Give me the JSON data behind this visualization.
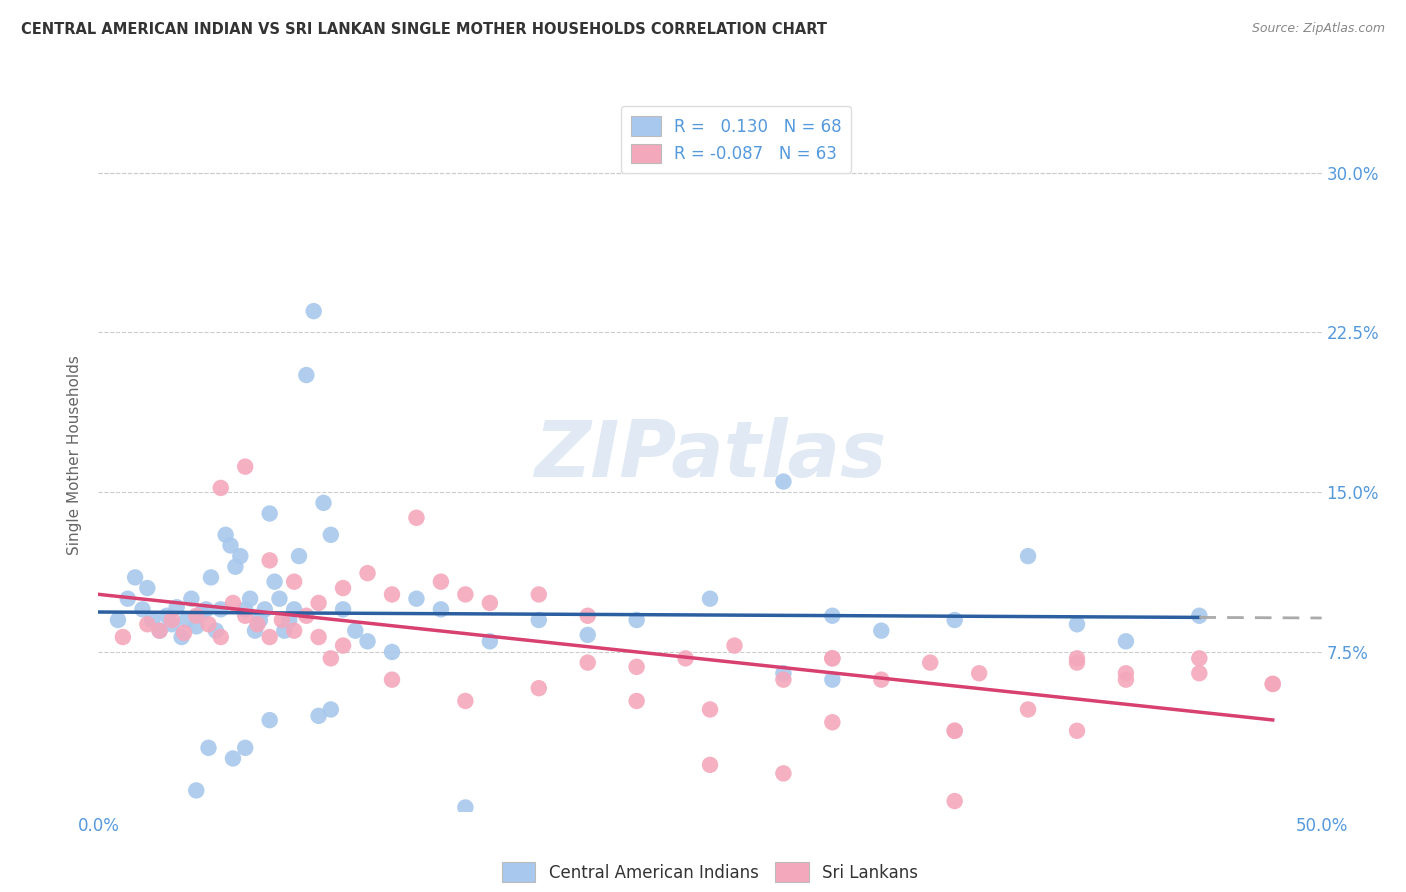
{
  "title": "CENTRAL AMERICAN INDIAN VS SRI LANKAN SINGLE MOTHER HOUSEHOLDS CORRELATION CHART",
  "source": "Source: ZipAtlas.com",
  "ylabel": "Single Mother Households",
  "xlim": [
    0.0,
    0.5
  ],
  "ylim": [
    -0.005,
    0.335
  ],
  "plot_ylim": [
    0.0,
    0.32
  ],
  "yticks": [
    0.075,
    0.15,
    0.225,
    0.3
  ],
  "ytick_labels": [
    "7.5%",
    "15.0%",
    "22.5%",
    "30.0%"
  ],
  "xticks": [
    0.0,
    0.1,
    0.2,
    0.3,
    0.4,
    0.5
  ],
  "xtick_labels": [
    "0.0%",
    "",
    "",
    "",
    "",
    "50.0%"
  ],
  "blue_color": "#A8C8ED",
  "pink_color": "#F4A8BC",
  "blue_line_color": "#2B5FA0",
  "pink_line_color": "#D84070",
  "dashed_color": "#AAAAAA",
  "grid_color": "#CCCCCC",
  "title_color": "#333333",
  "right_axis_color": "#5599DD",
  "legend_r_blue": "0.130",
  "legend_n_blue": "68",
  "legend_r_pink": "-0.087",
  "legend_n_pink": "63",
  "legend_label_blue": "Central American Indians",
  "legend_label_pink": "Sri Lankans",
  "watermark": "ZIPatlas",
  "blue_R": 0.13,
  "pink_R": -0.087,
  "blue_scatter_x": [
    0.008,
    0.012,
    0.015,
    0.018,
    0.02,
    0.022,
    0.025,
    0.028,
    0.03,
    0.032,
    0.034,
    0.036,
    0.038,
    0.04,
    0.042,
    0.044,
    0.046,
    0.048,
    0.05,
    0.052,
    0.054,
    0.056,
    0.058,
    0.06,
    0.062,
    0.064,
    0.066,
    0.068,
    0.07,
    0.072,
    0.074,
    0.076,
    0.078,
    0.08,
    0.082,
    0.085,
    0.088,
    0.092,
    0.095,
    0.1,
    0.105,
    0.11,
    0.12,
    0.13,
    0.14,
    0.16,
    0.18,
    0.2,
    0.22,
    0.25,
    0.28,
    0.3,
    0.32,
    0.35,
    0.38,
    0.4,
    0.42,
    0.45,
    0.28,
    0.3,
    0.09,
    0.095,
    0.04,
    0.06,
    0.045,
    0.055,
    0.07,
    0.15
  ],
  "blue_scatter_y": [
    0.09,
    0.1,
    0.11,
    0.095,
    0.105,
    0.09,
    0.085,
    0.092,
    0.088,
    0.096,
    0.082,
    0.09,
    0.1,
    0.087,
    0.093,
    0.095,
    0.11,
    0.085,
    0.095,
    0.13,
    0.125,
    0.115,
    0.12,
    0.095,
    0.1,
    0.085,
    0.09,
    0.095,
    0.14,
    0.108,
    0.1,
    0.085,
    0.09,
    0.095,
    0.12,
    0.205,
    0.235,
    0.145,
    0.13,
    0.095,
    0.085,
    0.08,
    0.075,
    0.1,
    0.095,
    0.08,
    0.09,
    0.083,
    0.09,
    0.1,
    0.155,
    0.092,
    0.085,
    0.09,
    0.12,
    0.088,
    0.08,
    0.092,
    0.065,
    0.062,
    0.045,
    0.048,
    0.01,
    0.03,
    0.03,
    0.025,
    0.043,
    0.002
  ],
  "pink_scatter_x": [
    0.01,
    0.02,
    0.025,
    0.03,
    0.035,
    0.04,
    0.045,
    0.05,
    0.055,
    0.06,
    0.065,
    0.07,
    0.075,
    0.08,
    0.085,
    0.09,
    0.095,
    0.1,
    0.11,
    0.12,
    0.13,
    0.14,
    0.15,
    0.16,
    0.18,
    0.2,
    0.22,
    0.24,
    0.26,
    0.28,
    0.3,
    0.32,
    0.34,
    0.36,
    0.38,
    0.4,
    0.42,
    0.45,
    0.48,
    0.05,
    0.06,
    0.07,
    0.08,
    0.09,
    0.1,
    0.12,
    0.15,
    0.18,
    0.22,
    0.25,
    0.3,
    0.35,
    0.42,
    0.48,
    0.2,
    0.25,
    0.3,
    0.35,
    0.4,
    0.45,
    0.28,
    0.35,
    0.4
  ],
  "pink_scatter_y": [
    0.082,
    0.088,
    0.085,
    0.09,
    0.084,
    0.092,
    0.088,
    0.082,
    0.098,
    0.092,
    0.088,
    0.082,
    0.09,
    0.085,
    0.092,
    0.082,
    0.072,
    0.078,
    0.112,
    0.102,
    0.138,
    0.108,
    0.102,
    0.098,
    0.102,
    0.092,
    0.068,
    0.072,
    0.078,
    0.062,
    0.072,
    0.062,
    0.07,
    0.065,
    0.048,
    0.07,
    0.065,
    0.072,
    0.06,
    0.152,
    0.162,
    0.118,
    0.108,
    0.098,
    0.105,
    0.062,
    0.052,
    0.058,
    0.052,
    0.048,
    0.042,
    0.038,
    0.062,
    0.06,
    0.07,
    0.022,
    0.072,
    0.038,
    0.072,
    0.065,
    0.018,
    0.005,
    0.038
  ]
}
